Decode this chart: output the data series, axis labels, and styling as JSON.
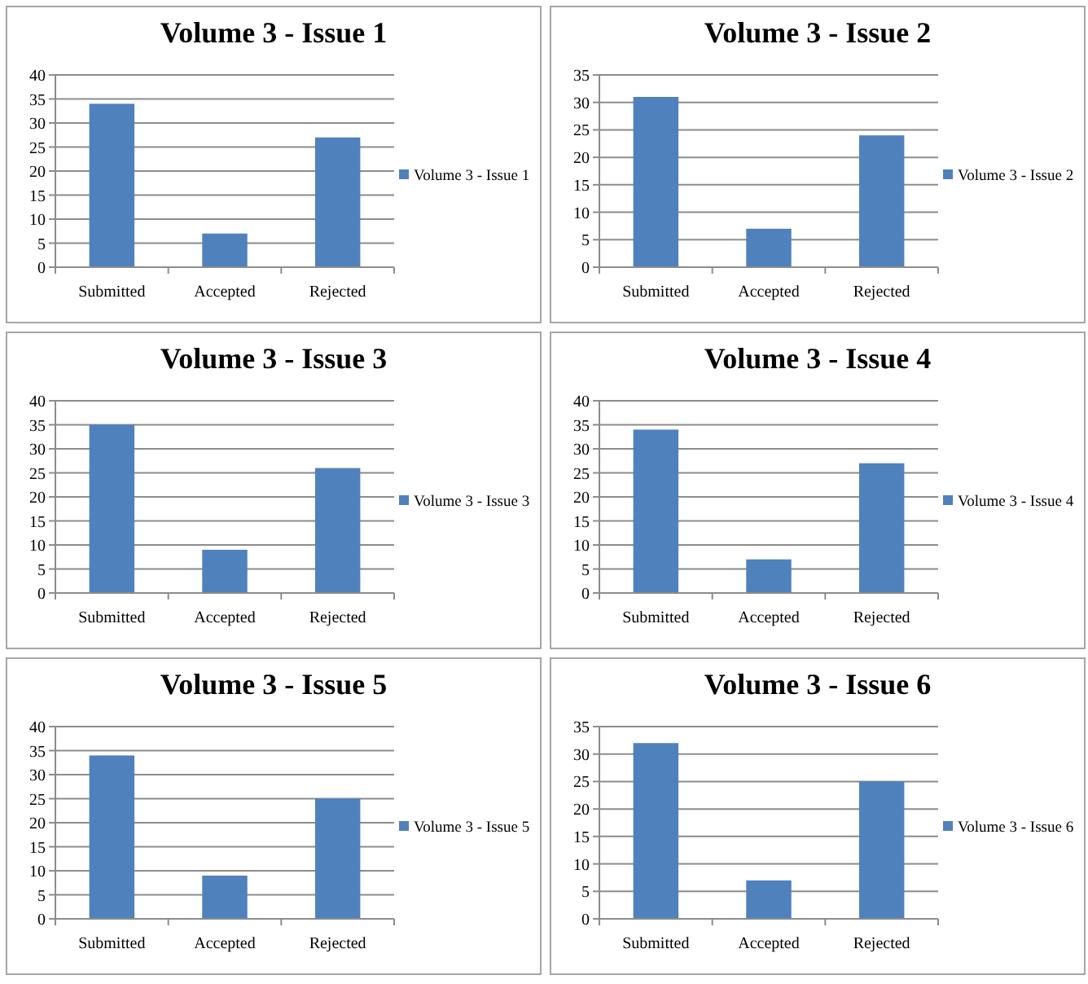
{
  "chart_data": [
    {
      "type": "bar",
      "title": "Volume 3 - Issue 1",
      "categories": [
        "Submitted",
        "Accepted",
        "Rejected"
      ],
      "series": [
        {
          "name": "Volume 3 - Issue 1",
          "color": "#4f81bd",
          "values": [
            34,
            7,
            27
          ]
        }
      ],
      "ylim": [
        0,
        40
      ],
      "yticks": [
        0,
        5,
        10,
        15,
        20,
        25,
        30,
        35,
        40
      ],
      "grid": "y",
      "legend": "right"
    },
    {
      "type": "bar",
      "title": "Volume 3 - Issue 2",
      "categories": [
        "Submitted",
        "Accepted",
        "Rejected"
      ],
      "series": [
        {
          "name": "Volume 3 - Issue 2",
          "color": "#4f81bd",
          "values": [
            31,
            7,
            24
          ]
        }
      ],
      "ylim": [
        0,
        35
      ],
      "yticks": [
        0,
        5,
        10,
        15,
        20,
        25,
        30,
        35
      ],
      "grid": "y",
      "legend": "right"
    },
    {
      "type": "bar",
      "title": "Volume 3 - Issue 3",
      "categories": [
        "Submitted",
        "Accepted",
        "Rejected"
      ],
      "series": [
        {
          "name": "Volume 3 - Issue 3",
          "color": "#4f81bd",
          "values": [
            35,
            9,
            26
          ]
        }
      ],
      "ylim": [
        0,
        40
      ],
      "yticks": [
        0,
        5,
        10,
        15,
        20,
        25,
        30,
        35,
        40
      ],
      "grid": "y",
      "legend": "right"
    },
    {
      "type": "bar",
      "title": "Volume 3 - Issue 4",
      "categories": [
        "Submitted",
        "Accepted",
        "Rejected"
      ],
      "series": [
        {
          "name": "Volume 3 - Issue 4",
          "color": "#4f81bd",
          "values": [
            34,
            7,
            27
          ]
        }
      ],
      "ylim": [
        0,
        40
      ],
      "yticks": [
        0,
        5,
        10,
        15,
        20,
        25,
        30,
        35,
        40
      ],
      "grid": "y",
      "legend": "right"
    },
    {
      "type": "bar",
      "title": "Volume 3 - Issue 5",
      "categories": [
        "Submitted",
        "Accepted",
        "Rejected"
      ],
      "series": [
        {
          "name": "Volume 3 - Issue 5",
          "color": "#4f81bd",
          "values": [
            34,
            9,
            25
          ]
        }
      ],
      "ylim": [
        0,
        40
      ],
      "yticks": [
        0,
        5,
        10,
        15,
        20,
        25,
        30,
        35,
        40
      ],
      "grid": "y",
      "legend": "right"
    },
    {
      "type": "bar",
      "title": "Volume 3 - Issue 6",
      "categories": [
        "Submitted",
        "Accepted",
        "Rejected"
      ],
      "series": [
        {
          "name": "Volume 3 - Issue 6",
          "color": "#4f81bd",
          "values": [
            32,
            7,
            25
          ]
        }
      ],
      "ylim": [
        0,
        35
      ],
      "yticks": [
        0,
        5,
        10,
        15,
        20,
        25,
        30,
        35
      ],
      "grid": "y",
      "legend": "right"
    }
  ]
}
